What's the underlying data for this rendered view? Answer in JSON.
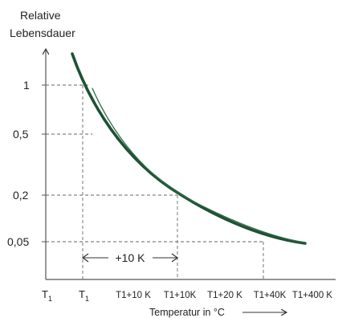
{
  "chart_data": {
    "type": "line",
    "ylabel_lines": [
      "Relative",
      "Lebensdauer"
    ],
    "xlabel": "Temperatur in °C",
    "y_ticks": [
      "1",
      "0,5",
      "0,2",
      "0,05"
    ],
    "x_ticks": [
      {
        "base": "T",
        "sub": "1"
      },
      {
        "base": "T",
        "sub": "1"
      },
      {
        "base": "T1+10 K",
        "sub": ""
      },
      {
        "base": "T1+10K",
        "sub": ""
      },
      {
        "base": "T1+20 K",
        "sub": ""
      },
      {
        "base": "T1+40K",
        "sub": ""
      },
      {
        "base": "T1+400 K",
        "sub": ""
      }
    ],
    "annotation": "+10 K",
    "series": [
      {
        "color": "#1f5135",
        "stroke": "thick",
        "points": [
          [
            0.9,
            1.5
          ],
          [
            1,
            1
          ],
          [
            2,
            0.45
          ],
          [
            3,
            0.2
          ],
          [
            4,
            0.12
          ],
          [
            5,
            0.07
          ],
          [
            5.9,
            0.05
          ]
        ]
      },
      {
        "color": "#2d6b45",
        "stroke": "thin",
        "points": [
          [
            1.2,
            0.9
          ],
          [
            2,
            0.55
          ],
          [
            3,
            0.27
          ],
          [
            4,
            0.14
          ],
          [
            5,
            0.07
          ],
          [
            5.9,
            0.05
          ]
        ]
      }
    ],
    "guides": [
      {
        "x": 1,
        "y": 1
      },
      {
        "x": 3,
        "y": 0.2
      },
      {
        "x": 5,
        "y": 0.05
      }
    ],
    "grid": false
  }
}
